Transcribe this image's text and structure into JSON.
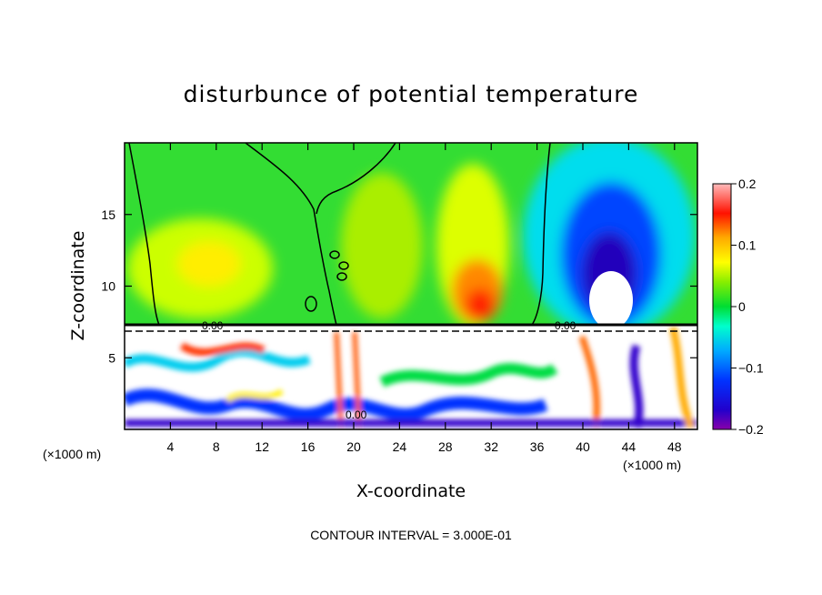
{
  "chart_data": {
    "type": "heatmap",
    "title": "disturbunce of potential temperature",
    "xlabel": "X-coordinate",
    "ylabel": "Z-coordinate",
    "x_unit_note": "(×1000 m)",
    "y_unit_note": "(×1000 m)",
    "x_ticks": [
      4,
      8,
      12,
      16,
      20,
      24,
      28,
      32,
      36,
      40,
      44,
      48
    ],
    "y_ticks": [
      5,
      10,
      15
    ],
    "xlim": [
      0,
      50
    ],
    "ylim": [
      0,
      20
    ],
    "colorbar": {
      "range": [
        -0.2,
        0.2
      ],
      "tick_values": [
        0.2,
        0.1,
        0,
        -0.1,
        -0.2
      ],
      "tick_labels": [
        "0.2",
        "0.1",
        "0",
        "−0.1",
        "−0.2"
      ],
      "colors": [
        "#8800aa",
        "#3300cc",
        "#0000ee",
        "#0033ff",
        "#0077ff",
        "#00aaff",
        "#00ddee",
        "#00ffcc",
        "#00ee88",
        "#00dd33",
        "#33dd00",
        "#88ee00",
        "#ccff00",
        "#ffff00",
        "#ffdd00",
        "#ffaa00",
        "#ff7700",
        "#ff4400",
        "#ff0000",
        "#ff7777",
        "#ffbbbb"
      ]
    },
    "contour_labels": [
      "0.00",
      "0.00",
      "0.00"
    ],
    "annotation": "CONTOUR INTERVAL = 3.000E-01"
  }
}
